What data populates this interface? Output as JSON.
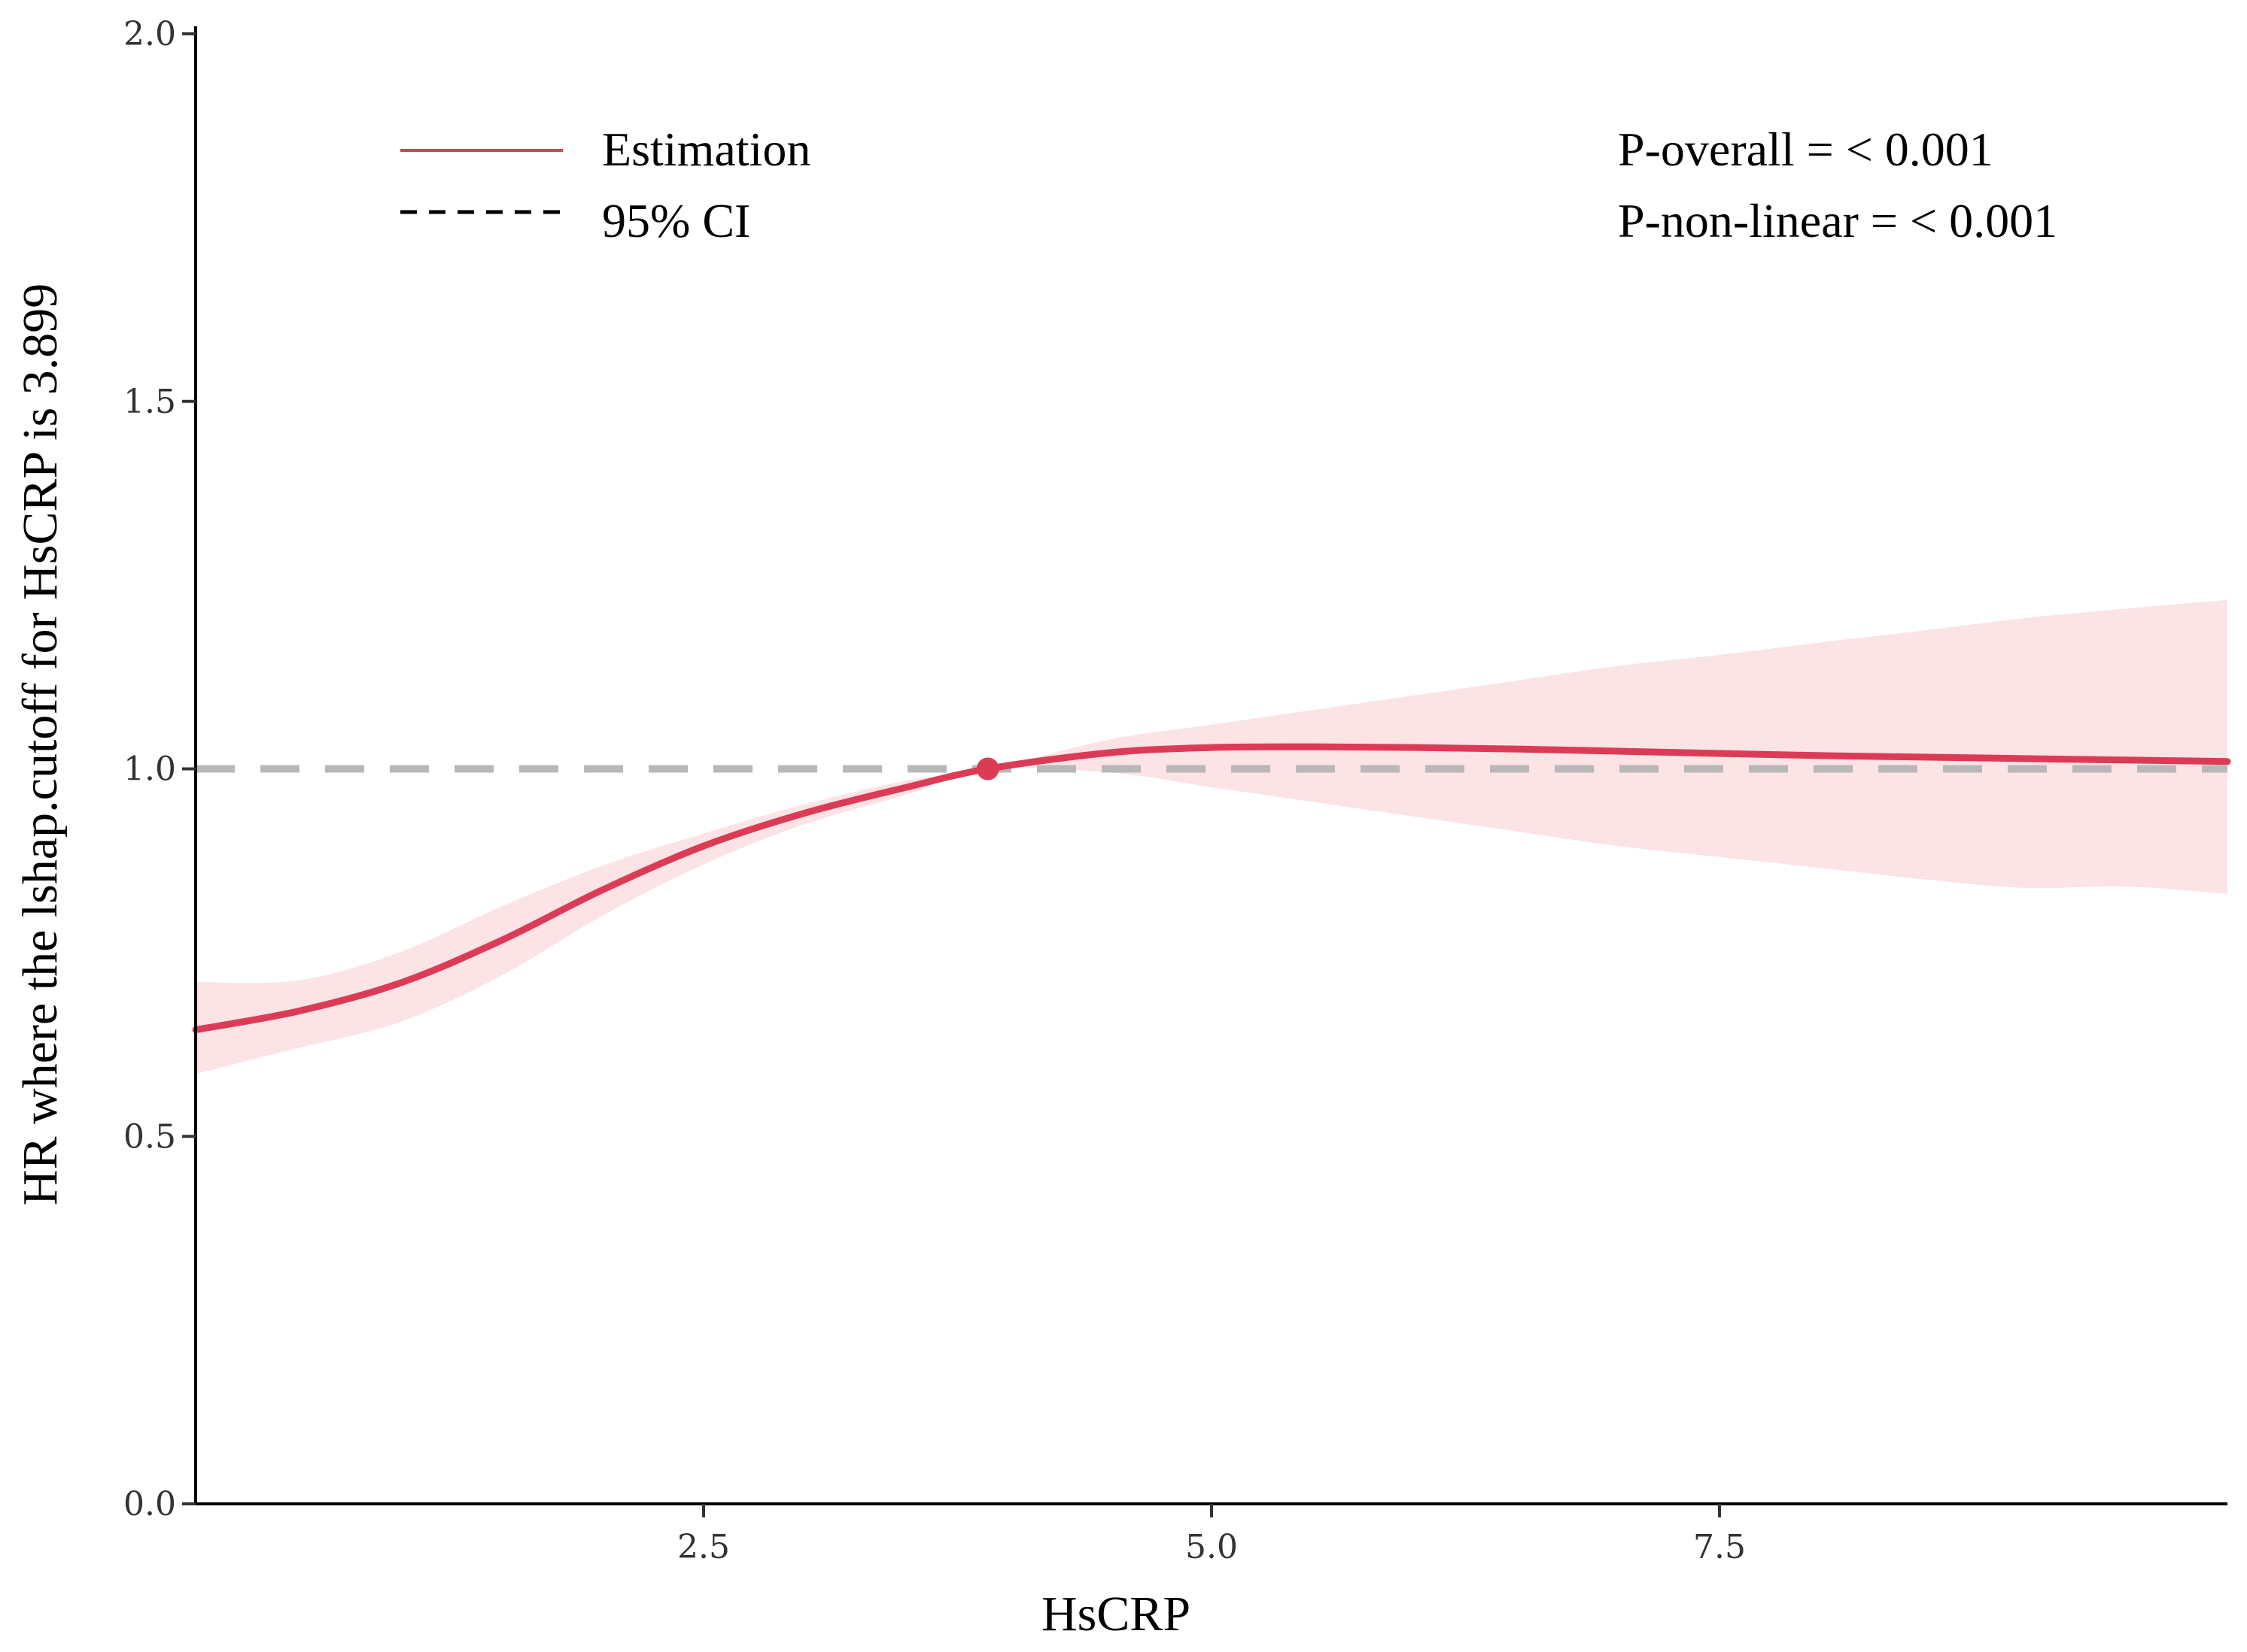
{
  "chart_data": {
    "type": "line",
    "xlabel": "HsCRP",
    "ylabel": "HR where the lshap.cutoff for HsCRP is 3.899",
    "xlim": [
      0.0,
      10.0
    ],
    "ylim": [
      0.0,
      2.0
    ],
    "x_ticks": [
      2.5,
      5.0,
      7.5
    ],
    "x_tick_labels": [
      "2.5",
      "5.0",
      "7.5"
    ],
    "y_ticks": [
      0.0,
      0.5,
      1.0,
      1.5,
      2.0
    ],
    "y_tick_labels": [
      "0.0",
      "0.5",
      "1.0",
      "1.5",
      "2.0"
    ],
    "reference_line": {
      "y": 1.0,
      "style": "dashed",
      "color": "#b8b8b8"
    },
    "cutoff_point": {
      "x": 3.899,
      "y": 1.0
    },
    "series": [
      {
        "name": "Estimation",
        "style": "solid",
        "color": "#dc3b55",
        "x": [
          0.0,
          0.5,
          1.0,
          1.5,
          2.0,
          2.5,
          3.0,
          3.5,
          3.899,
          4.5,
          5.0,
          5.5,
          6.0,
          6.5,
          7.0,
          7.5,
          8.0,
          8.5,
          9.0,
          9.5,
          10.0
        ],
        "y": [
          0.645,
          0.67,
          0.708,
          0.766,
          0.835,
          0.895,
          0.94,
          0.975,
          1.0,
          1.022,
          1.029,
          1.03,
          1.029,
          1.027,
          1.024,
          1.021,
          1.018,
          1.016,
          1.014,
          1.012,
          1.01
        ],
        "lower": [
          0.585,
          0.62,
          0.655,
          0.718,
          0.8,
          0.87,
          0.925,
          0.965,
          1.0,
          0.995,
          0.975,
          0.955,
          0.935,
          0.915,
          0.895,
          0.88,
          0.865,
          0.85,
          0.838,
          0.84,
          0.83
        ],
        "upper": [
          0.71,
          0.712,
          0.75,
          0.812,
          0.868,
          0.912,
          0.952,
          0.984,
          1.0,
          1.04,
          1.06,
          1.08,
          1.1,
          1.12,
          1.14,
          1.155,
          1.172,
          1.188,
          1.205,
          1.218,
          1.23
        ]
      },
      {
        "name": "95% CI",
        "style": "dashed",
        "color": "#fbe3e6"
      }
    ],
    "legend": {
      "placement": "top-left",
      "entries": [
        {
          "label": "Estimation",
          "style": "solid",
          "color": "#dc3b55"
        },
        {
          "label": "95% CI",
          "style": "dashed",
          "color": "#000000"
        }
      ]
    },
    "annotations": [
      "P-overall = < 0.001",
      "P-non-linear = < 0.001"
    ]
  }
}
